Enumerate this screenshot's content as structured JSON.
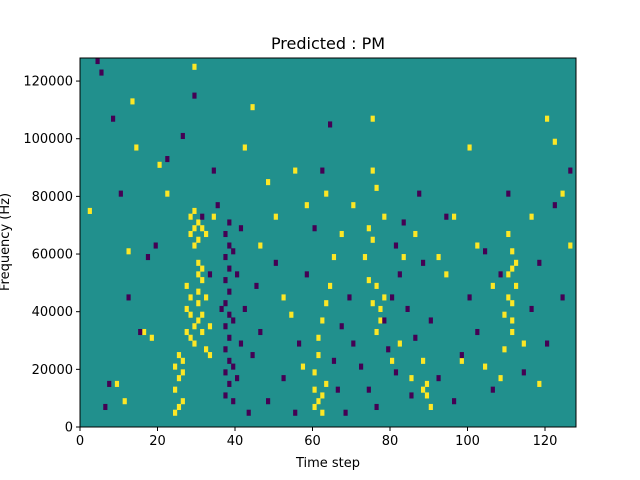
{
  "chart_data": {
    "type": "heatmap",
    "title": "Predicted : PM",
    "xlabel": "Time step",
    "ylabel": "Frequency (Hz)",
    "xlim": [
      0,
      128
    ],
    "ylim": [
      0,
      128000
    ],
    "xticks": [
      0,
      20,
      40,
      60,
      80,
      100,
      120
    ],
    "yticks": [
      0,
      20000,
      40000,
      60000,
      80000,
      100000,
      120000
    ],
    "grid": false,
    "legend": "none",
    "n_time_steps": 128,
    "n_freq_bins": 64,
    "freq_bin_width": 2000,
    "colors": {
      "background": "#21908d",
      "high": "#fde725",
      "low": "#440154"
    },
    "high_cells": [
      [
        2,
        37
      ],
      [
        9,
        7
      ],
      [
        11,
        4
      ],
      [
        12,
        30
      ],
      [
        13,
        56
      ],
      [
        14,
        48
      ],
      [
        16,
        16
      ],
      [
        18,
        15
      ],
      [
        20,
        45
      ],
      [
        22,
        40
      ],
      [
        24,
        2
      ],
      [
        24,
        6
      ],
      [
        24,
        10
      ],
      [
        25,
        3
      ],
      [
        25,
        8
      ],
      [
        25,
        12
      ],
      [
        26,
        4
      ],
      [
        26,
        9
      ],
      [
        26,
        11
      ],
      [
        27,
        16
      ],
      [
        27,
        20
      ],
      [
        27,
        24
      ],
      [
        28,
        15
      ],
      [
        28,
        19
      ],
      [
        28,
        22
      ],
      [
        28,
        33
      ],
      [
        28,
        36
      ],
      [
        29,
        14
      ],
      [
        29,
        17
      ],
      [
        29,
        31
      ],
      [
        29,
        34
      ],
      [
        29,
        37
      ],
      [
        29,
        62
      ],
      [
        30,
        18
      ],
      [
        30,
        21
      ],
      [
        30,
        23
      ],
      [
        30,
        26
      ],
      [
        30,
        28
      ],
      [
        30,
        32
      ],
      [
        30,
        35
      ],
      [
        31,
        16
      ],
      [
        31,
        19
      ],
      [
        31,
        25
      ],
      [
        31,
        27
      ],
      [
        31,
        34
      ],
      [
        32,
        13
      ],
      [
        32,
        22
      ],
      [
        32,
        33
      ],
      [
        33,
        12
      ],
      [
        33,
        17
      ],
      [
        34,
        36
      ],
      [
        42,
        48
      ],
      [
        44,
        55
      ],
      [
        46,
        31
      ],
      [
        48,
        42
      ],
      [
        50,
        36
      ],
      [
        52,
        22
      ],
      [
        54,
        19
      ],
      [
        55,
        44
      ],
      [
        57,
        10
      ],
      [
        58,
        38
      ],
      [
        60,
        6
      ],
      [
        60,
        3
      ],
      [
        60,
        9
      ],
      [
        61,
        4
      ],
      [
        61,
        12
      ],
      [
        61,
        15
      ],
      [
        62,
        2
      ],
      [
        62,
        5
      ],
      [
        62,
        18
      ],
      [
        63,
        7
      ],
      [
        63,
        21
      ],
      [
        63,
        40
      ],
      [
        64,
        24
      ],
      [
        65,
        29
      ],
      [
        67,
        33
      ],
      [
        70,
        38
      ],
      [
        73,
        29
      ],
      [
        74,
        25
      ],
      [
        74,
        34
      ],
      [
        75,
        21
      ],
      [
        75,
        32
      ],
      [
        75,
        44
      ],
      [
        75,
        53
      ],
      [
        76,
        16
      ],
      [
        76,
        24
      ],
      [
        76,
        41
      ],
      [
        77,
        18
      ],
      [
        77,
        20
      ],
      [
        78,
        22
      ],
      [
        78,
        36
      ],
      [
        80,
        11
      ],
      [
        82,
        14
      ],
      [
        83,
        29
      ],
      [
        85,
        8
      ],
      [
        86,
        33
      ],
      [
        88,
        6
      ],
      [
        88,
        11
      ],
      [
        89,
        5
      ],
      [
        89,
        7
      ],
      [
        90,
        3
      ],
      [
        92,
        29
      ],
      [
        94,
        26
      ],
      [
        96,
        36
      ],
      [
        98,
        11
      ],
      [
        100,
        48
      ],
      [
        102,
        31
      ],
      [
        104,
        10
      ],
      [
        106,
        24
      ],
      [
        108,
        8
      ],
      [
        109,
        13
      ],
      [
        109,
        19
      ],
      [
        110,
        22
      ],
      [
        110,
        26
      ],
      [
        110,
        33
      ],
      [
        111,
        16
      ],
      [
        111,
        18
      ],
      [
        111,
        21
      ],
      [
        111,
        27
      ],
      [
        111,
        30
      ],
      [
        112,
        24
      ],
      [
        112,
        28
      ],
      [
        114,
        14
      ],
      [
        116,
        36
      ],
      [
        118,
        7
      ],
      [
        120,
        53
      ],
      [
        122,
        49
      ],
      [
        124,
        40
      ],
      [
        126,
        31
      ]
    ],
    "low_cells": [
      [
        4,
        63
      ],
      [
        5,
        61
      ],
      [
        6,
        3
      ],
      [
        7,
        7
      ],
      [
        8,
        53
      ],
      [
        10,
        40
      ],
      [
        12,
        22
      ],
      [
        15,
        16
      ],
      [
        17,
        29
      ],
      [
        19,
        31
      ],
      [
        22,
        46
      ],
      [
        26,
        50
      ],
      [
        29,
        57
      ],
      [
        31,
        36
      ],
      [
        33,
        26
      ],
      [
        34,
        44
      ],
      [
        35,
        38
      ],
      [
        36,
        20
      ],
      [
        37,
        5
      ],
      [
        37,
        9
      ],
      [
        37,
        13
      ],
      [
        37,
        17
      ],
      [
        37,
        21
      ],
      [
        37,
        25
      ],
      [
        37,
        29
      ],
      [
        37,
        33
      ],
      [
        38,
        7
      ],
      [
        38,
        11
      ],
      [
        38,
        15
      ],
      [
        38,
        19
      ],
      [
        38,
        23
      ],
      [
        38,
        27
      ],
      [
        38,
        31
      ],
      [
        38,
        35
      ],
      [
        39,
        4
      ],
      [
        39,
        10
      ],
      [
        39,
        18
      ],
      [
        39,
        30
      ],
      [
        40,
        8
      ],
      [
        40,
        26
      ],
      [
        41,
        14
      ],
      [
        41,
        34
      ],
      [
        42,
        20
      ],
      [
        43,
        2
      ],
      [
        44,
        12
      ],
      [
        45,
        24
      ],
      [
        46,
        16
      ],
      [
        48,
        4
      ],
      [
        50,
        28
      ],
      [
        52,
        8
      ],
      [
        55,
        2
      ],
      [
        56,
        14
      ],
      [
        58,
        26
      ],
      [
        60,
        34
      ],
      [
        62,
        44
      ],
      [
        64,
        52
      ],
      [
        65,
        11
      ],
      [
        66,
        6
      ],
      [
        67,
        17
      ],
      [
        68,
        2
      ],
      [
        69,
        22
      ],
      [
        70,
        14
      ],
      [
        72,
        10
      ],
      [
        74,
        6
      ],
      [
        76,
        3
      ],
      [
        78,
        18
      ],
      [
        79,
        13
      ],
      [
        80,
        22
      ],
      [
        81,
        9
      ],
      [
        81,
        31
      ],
      [
        82,
        26
      ],
      [
        83,
        35
      ],
      [
        84,
        20
      ],
      [
        85,
        5
      ],
      [
        86,
        15
      ],
      [
        87,
        40
      ],
      [
        88,
        28
      ],
      [
        90,
        18
      ],
      [
        92,
        8
      ],
      [
        94,
        36
      ],
      [
        96,
        4
      ],
      [
        98,
        12
      ],
      [
        100,
        22
      ],
      [
        102,
        16
      ],
      [
        104,
        30
      ],
      [
        106,
        6
      ],
      [
        108,
        26
      ],
      [
        110,
        40
      ],
      [
        114,
        9
      ],
      [
        116,
        20
      ],
      [
        118,
        28
      ],
      [
        120,
        14
      ],
      [
        122,
        38
      ],
      [
        124,
        22
      ],
      [
        126,
        44
      ]
    ]
  }
}
